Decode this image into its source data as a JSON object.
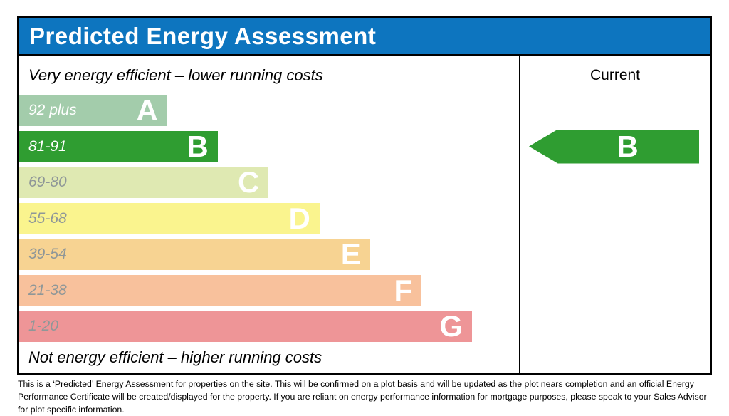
{
  "chart_data": {
    "type": "bar",
    "title": "Predicted Energy Assessment",
    "top_caption": "Very energy efficient – lower running costs",
    "bottom_caption": "Not energy efficient – higher running costs",
    "current_column_label": "Current",
    "legend_position": "none",
    "grid": false,
    "bands": [
      {
        "letter": "A",
        "range": "92 plus",
        "min": 92,
        "max": 100,
        "color": "#a3ccab",
        "range_text_color": "#ffffff",
        "width_pct": 29.6
      },
      {
        "letter": "B",
        "range": "81-91",
        "min": 81,
        "max": 91,
        "color": "#2f9d31",
        "range_text_color": "#ffffff",
        "width_pct": 39.7
      },
      {
        "letter": "C",
        "range": "69-80",
        "min": 69,
        "max": 80,
        "color": "#dfe9b2",
        "range_text_color": "#8f9798",
        "width_pct": 49.9
      },
      {
        "letter": "D",
        "range": "55-68",
        "min": 55,
        "max": 68,
        "color": "#faf48e",
        "range_text_color": "#8f9798",
        "width_pct": 60.1
      },
      {
        "letter": "E",
        "range": "39-54",
        "min": 39,
        "max": 54,
        "color": "#f7d392",
        "range_text_color": "#8f9798",
        "width_pct": 70.2
      },
      {
        "letter": "F",
        "range": "21-38",
        "min": 21,
        "max": 38,
        "color": "#f8c19c",
        "range_text_color": "#8f9798",
        "width_pct": 80.5
      },
      {
        "letter": "G",
        "range": "1-20",
        "min": 1,
        "max": 20,
        "color": "#ee9597",
        "range_text_color": "#8f9798",
        "width_pct": 90.6
      }
    ],
    "current_rating": {
      "letter": "B",
      "range": "81-91",
      "band_index": 1,
      "arrow_color": "#2f9d31"
    },
    "colors": {
      "header_bg": "#0d75bf",
      "header_text": "#ffffff",
      "border": "#000000",
      "band_letter_color": "#ffffff"
    }
  },
  "footer": {
    "disclaimer": "This is a ‘Predicted’ Energy Assessment for properties on the site. This will be confirmed on a plot basis and will be updated as the plot nears completion and an official Energy Performance Certificate will be created/displayed for the property. If you are reliant on energy performance information for mortgage purposes, please speak to your Sales Advisor for plot specific information."
  }
}
